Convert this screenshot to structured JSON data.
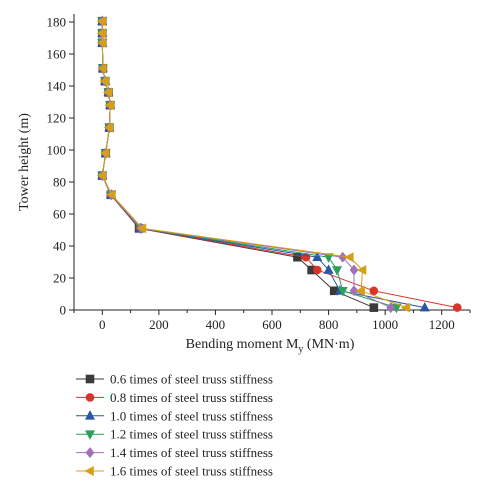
{
  "chart_data": {
    "type": "line",
    "xlabel": "Bending moment M",
    "xlabel_sub": "y",
    "xlabel_unit": " (MN·m)",
    "ylabel": "Tower height (m)",
    "xlim": [
      -100,
      1300
    ],
    "ylim": [
      0,
      185
    ],
    "xticks": [
      0,
      200,
      400,
      600,
      800,
      1000,
      1200
    ],
    "yticks": [
      0,
      20,
      40,
      60,
      80,
      100,
      120,
      140,
      160,
      180
    ],
    "grid": false,
    "legend_position": "bottom",
    "series": [
      {
        "name": "0.6 times of steel truss stiffness",
        "color": "#3a3a3a",
        "marker": "square",
        "points": [
          [
            0,
            180.5
          ],
          [
            0,
            173
          ],
          [
            0,
            167
          ],
          [
            2,
            151
          ],
          [
            10,
            143
          ],
          [
            22,
            136
          ],
          [
            28,
            128
          ],
          [
            25,
            114
          ],
          [
            12,
            98
          ],
          [
            0,
            84
          ],
          [
            30,
            72
          ],
          [
            130,
            51
          ],
          [
            690,
            33
          ],
          [
            740,
            25
          ],
          [
            820,
            12
          ],
          [
            960,
            1.5
          ]
        ]
      },
      {
        "name": "0.8 times of steel truss stiffness",
        "color": "#d9342b",
        "marker": "circle",
        "points": [
          [
            0,
            180.5
          ],
          [
            0,
            173
          ],
          [
            0,
            167
          ],
          [
            2,
            151
          ],
          [
            10,
            143
          ],
          [
            22,
            136
          ],
          [
            28,
            128
          ],
          [
            25,
            114
          ],
          [
            12,
            98
          ],
          [
            0,
            84
          ],
          [
            30,
            72
          ],
          [
            132,
            51
          ],
          [
            720,
            33
          ],
          [
            760,
            25
          ],
          [
            960,
            12
          ],
          [
            1255,
            1.5
          ]
        ]
      },
      {
        "name": "1.0 times of steel truss stiffness",
        "color": "#2957a4",
        "marker": "triangle-up",
        "points": [
          [
            0,
            180.5
          ],
          [
            0,
            173
          ],
          [
            0,
            167
          ],
          [
            2,
            151
          ],
          [
            10,
            143
          ],
          [
            22,
            136
          ],
          [
            28,
            128
          ],
          [
            25,
            114
          ],
          [
            12,
            98
          ],
          [
            0,
            84
          ],
          [
            32,
            72
          ],
          [
            134,
            51
          ],
          [
            760,
            33
          ],
          [
            800,
            25
          ],
          [
            840,
            12
          ],
          [
            1140,
            1.5
          ]
        ]
      },
      {
        "name": "1.2 times of steel truss stiffness",
        "color": "#2aa05a",
        "marker": "triangle-down",
        "points": [
          [
            0,
            180.5
          ],
          [
            0,
            173
          ],
          [
            0,
            167
          ],
          [
            2,
            151
          ],
          [
            10,
            143
          ],
          [
            22,
            136
          ],
          [
            28,
            128
          ],
          [
            25,
            114
          ],
          [
            12,
            98
          ],
          [
            0,
            84
          ],
          [
            32,
            72
          ],
          [
            136,
            51
          ],
          [
            800,
            33
          ],
          [
            830,
            25
          ],
          [
            850,
            12
          ],
          [
            1040,
            1.5
          ]
        ]
      },
      {
        "name": "1.4 times of steel truss stiffness",
        "color": "#a070b8",
        "marker": "diamond",
        "points": [
          [
            0,
            180.5
          ],
          [
            0,
            173
          ],
          [
            0,
            167
          ],
          [
            2,
            151
          ],
          [
            10,
            143
          ],
          [
            22,
            136
          ],
          [
            28,
            128
          ],
          [
            25,
            114
          ],
          [
            12,
            98
          ],
          [
            0,
            84
          ],
          [
            32,
            72
          ],
          [
            138,
            51
          ],
          [
            850,
            33
          ],
          [
            890,
            25
          ],
          [
            890,
            12
          ],
          [
            1020,
            1.5
          ]
        ]
      },
      {
        "name": "1.6 times of steel truss stiffness",
        "color": "#d4a017",
        "marker": "triangle-left",
        "points": [
          [
            0,
            180.5
          ],
          [
            0,
            173
          ],
          [
            0,
            167
          ],
          [
            2,
            151
          ],
          [
            10,
            143
          ],
          [
            22,
            136
          ],
          [
            28,
            128
          ],
          [
            25,
            114
          ],
          [
            12,
            98
          ],
          [
            0,
            84
          ],
          [
            34,
            72
          ],
          [
            142,
            51
          ],
          [
            875,
            33
          ],
          [
            920,
            25
          ],
          [
            915,
            12
          ],
          [
            1075,
            1.5
          ]
        ]
      }
    ]
  }
}
